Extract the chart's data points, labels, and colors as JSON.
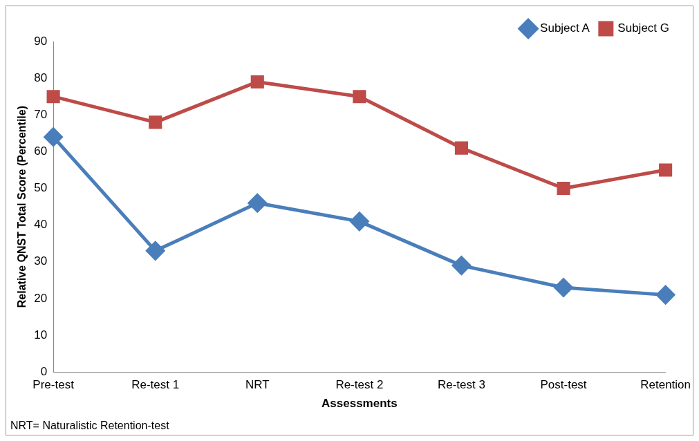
{
  "chart_data": {
    "type": "line",
    "xlabel": "Assessments",
    "ylabel": "Relative QNST Total Score (Percentile)",
    "categories": [
      "Pre-test",
      "Re-test 1",
      "NRT",
      "Re-test 2",
      "Re-test 3",
      "Post-test",
      "Retention"
    ],
    "series": [
      {
        "name": "Subject A",
        "color": "#4a7ebb",
        "marker": "diamond",
        "values": [
          64,
          33,
          46,
          41,
          29,
          23,
          21
        ]
      },
      {
        "name": "Subject G",
        "color": "#be4b48",
        "marker": "square",
        "values": [
          75,
          68,
          79,
          75,
          61,
          50,
          55
        ]
      }
    ],
    "ylim": [
      0,
      90
    ],
    "yticks": [
      0,
      10,
      20,
      30,
      40,
      50,
      60,
      70,
      80,
      90
    ],
    "grid": false,
    "legend": "top right",
    "annotations": [
      "NRT= Naturalistic Retention-test"
    ]
  }
}
